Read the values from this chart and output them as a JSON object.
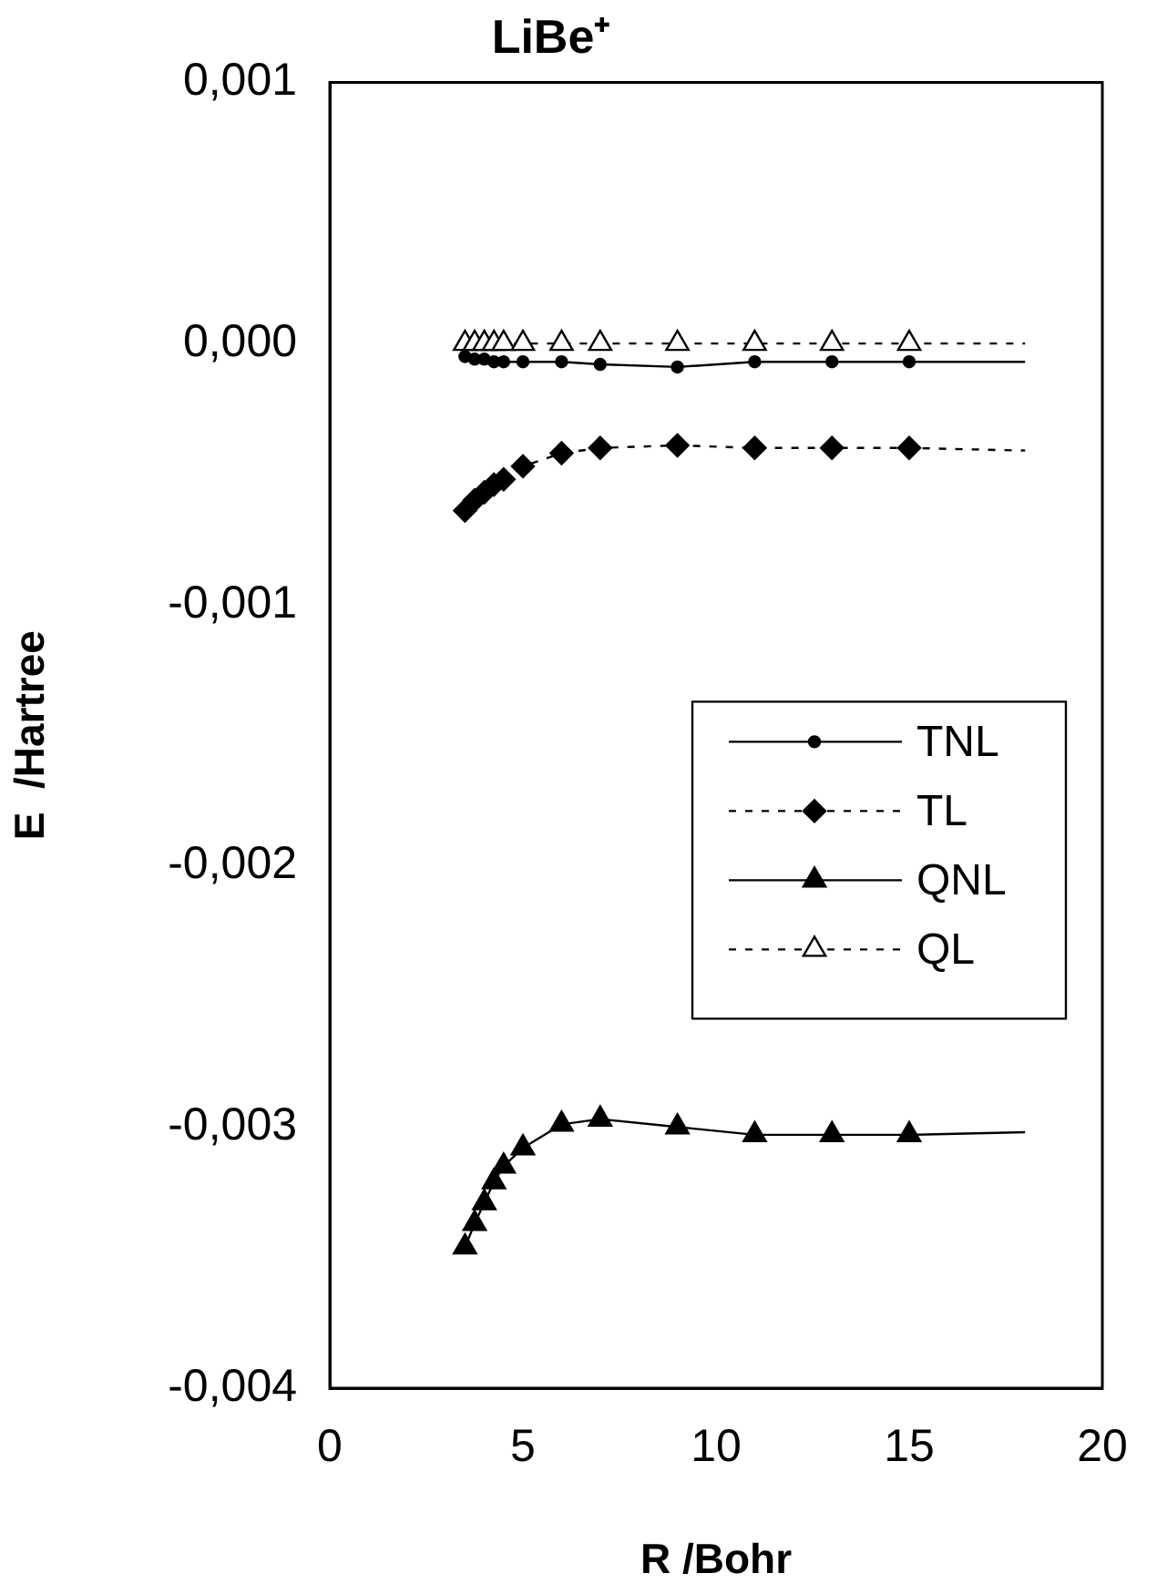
{
  "chart_data": {
    "type": "line",
    "title": "LiBe⁺",
    "xlabel": "R /Bohr",
    "ylabel": "E  /Hartree",
    "xlim": [
      0,
      20
    ],
    "xticks": [
      0,
      5,
      10,
      15,
      20
    ],
    "ylim": [
      -0.004,
      0.001
    ],
    "yticks": [
      {
        "value": -0.004,
        "label": "-0,004"
      },
      {
        "value": -0.003,
        "label": "-0,003"
      },
      {
        "value": -0.002,
        "label": "-0,002"
      },
      {
        "value": -0.001,
        "label": "-0,001"
      },
      {
        "value": 0,
        "label": "0,000"
      },
      {
        "value": 0.001,
        "label": "0,001"
      }
    ],
    "grid": false,
    "legend": "right",
    "series": [
      {
        "name": "TNL",
        "color": "#000000",
        "marker": "circle",
        "line_style": "solid",
        "x": [
          3.5,
          3.75,
          4,
          4.25,
          4.5,
          5,
          6,
          7,
          9,
          11,
          13,
          15,
          18
        ],
        "values": [
          -5e-05,
          -6e-05,
          -6e-05,
          -7e-05,
          -7e-05,
          -7e-05,
          -7e-05,
          -8e-05,
          -9e-05,
          -7e-05,
          -7e-05,
          -7e-05,
          -7e-05
        ]
      },
      {
        "name": "TL",
        "color": "#000000",
        "marker": "diamond",
        "line_style": "dashed",
        "x": [
          3.5,
          3.75,
          4,
          4.25,
          4.5,
          5,
          6,
          7,
          9,
          11,
          13,
          15,
          18
        ],
        "values": [
          -0.00064,
          -0.0006,
          -0.00057,
          -0.00054,
          -0.00052,
          -0.00047,
          -0.00042,
          -0.0004,
          -0.00039,
          -0.0004,
          -0.0004,
          -0.0004,
          -0.00041
        ]
      },
      {
        "name": "QNL",
        "color": "#000000",
        "marker": "triangle",
        "line_style": "solid",
        "x": [
          3.5,
          3.75,
          4,
          4.25,
          4.5,
          5,
          6,
          7,
          9,
          11,
          13,
          15,
          18
        ],
        "values": [
          -0.00346,
          -0.00337,
          -0.00329,
          -0.00321,
          -0.00315,
          -0.00308,
          -0.00299,
          -0.00297,
          -0.003,
          -0.00303,
          -0.00303,
          -0.00303,
          -0.00302
        ]
      },
      {
        "name": "QL",
        "color": "#000000",
        "marker": "triangle",
        "line_style": "dashed",
        "x": [
          3.5,
          3.75,
          4,
          4.25,
          4.5,
          5,
          6,
          7,
          9,
          11,
          13,
          15,
          18
        ],
        "values": [
          0,
          0,
          0,
          0,
          0,
          0,
          0,
          0,
          0,
          0,
          0,
          0,
          0
        ]
      }
    ]
  }
}
